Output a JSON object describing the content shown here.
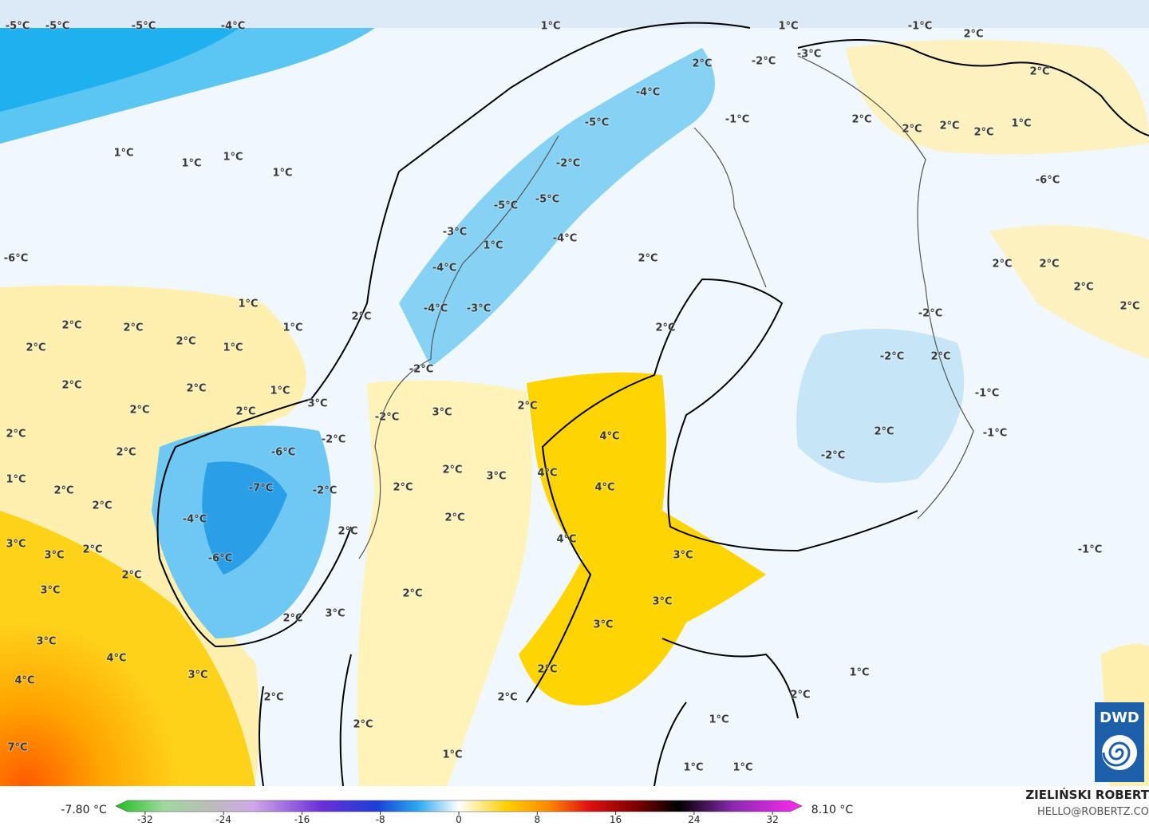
{
  "map_labels": [
    "-5°C",
    "-5°C",
    "-5°C",
    "-4°C",
    "1°C",
    "1°C",
    "-1°C",
    "2°C",
    "2°C",
    "-2°C",
    "-3°C",
    "2°C",
    "-4°C",
    "-5°C",
    "-1°C",
    "2°C",
    "2°C",
    "2°C",
    "2°C",
    "1°C",
    "1°C",
    "1°C",
    "1°C",
    "1°C",
    "-6°C",
    "-2°C",
    "-6°C",
    "-5°C",
    "-5°C",
    "-3°C",
    "-4°C",
    "1°C",
    "2°C",
    "2°C",
    "2°C",
    "-4°C",
    "2°C",
    "1°C",
    "-4°C",
    "-3°C",
    "2°C",
    "2°C",
    "2°C",
    "1°C",
    "2°C",
    "2°C",
    "-2°C",
    "2°C",
    "2°C",
    "1°C",
    "-2°C",
    "2°C",
    "-2°C",
    "2°C",
    "2°C",
    "1°C",
    "-1°C",
    "2°C",
    "3°C",
    "2°C",
    "-2°C",
    "3°C",
    "2°C",
    "2°C",
    "-2°C",
    "4°C",
    "-1°C",
    "2°C",
    "2°C",
    "-6°C",
    "-2°C",
    "1°C",
    "2°C",
    "3°C",
    "4°C",
    "4°C",
    "-7°C",
    "-2°C",
    "2°C",
    "2°C",
    "2°C",
    "2°C",
    "-4°C",
    "2°C",
    "3°C",
    "4°C",
    "-1°C",
    "2°C",
    "3°C",
    "-6°C",
    "3°C",
    "2°C",
    "3°C",
    "2°C",
    "3°C",
    "3°C",
    "2°C",
    "3°C",
    "3°C",
    "4°C",
    "2°C",
    "3°C",
    "1°C",
    "4°C",
    "2°C",
    "2°C",
    "2°C",
    "2°C",
    "1°C",
    "7°C",
    "1°C",
    "1°C",
    "1°C"
  ],
  "colorbar": {
    "min_label": "-7.80 °C",
    "max_label": "8.10 °C",
    "lim": [
      -35,
      35
    ],
    "ticks": [
      -32,
      -24,
      -16,
      -8,
      0,
      8,
      16,
      24,
      32
    ]
  },
  "credits": {
    "author": "ZIELIŃSKI ROBERT",
    "email": "HELLO@ROBERTZ.CO",
    "logo": "DWD"
  }
}
